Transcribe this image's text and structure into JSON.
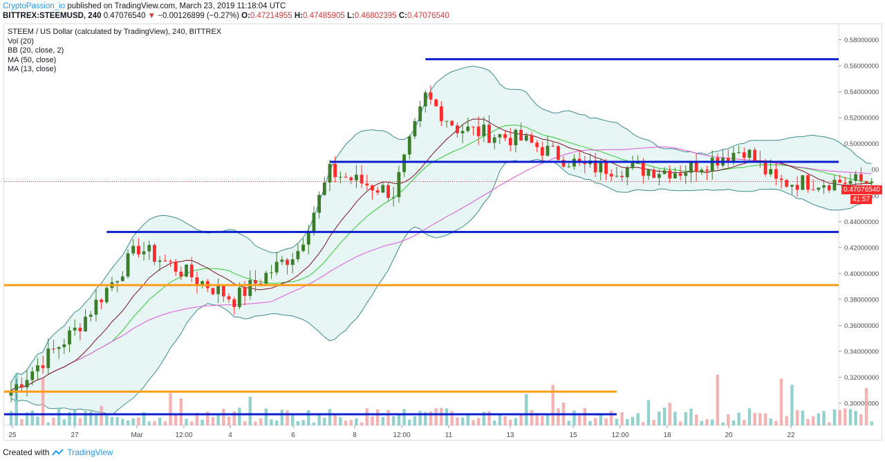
{
  "header": {
    "author": "CryptoPassion_io",
    "published": "published on TradingView.com, March 23, 2019 11:18:04 UTC",
    "symbol": "BITTREX:STEEMUSD, 240",
    "last": "0.47076540",
    "arrow": "▼",
    "change": "−0.00126899 (−0.27%)",
    "o_label": "O:",
    "o": "0.47214955",
    "h_label": "H:",
    "h": "0.47485905",
    "l_label": "L:",
    "l": "0.46802395",
    "c_label": "C:",
    "c": "0.47076540"
  },
  "legend": [
    "STEEM / US Dollar (calculated by TradingView), 240, BITTREX",
    "Vol (20)",
    "BB (20, close, 2)",
    "MA (50, close)",
    "MA (13, close)"
  ],
  "price_tag": "0.47076540",
  "countdown_tag": "41:57",
  "footer": {
    "text": "Created with",
    "brand": "TradingView"
  },
  "colors": {
    "up": "#3b7d2a",
    "down": "#ff2a2a",
    "bb": "#3b8b8b",
    "bbfill": "#e7f5f5",
    "ma50": "#e055dc",
    "ma13": "#7a0e1c",
    "ma20": "#2ecc2e",
    "blueline": "#0a1ed0",
    "orangeline": "#ff9b14",
    "volup": "#7fc9c6",
    "voldown": "#f2a4a4"
  },
  "chart_data": {
    "type": "candlestick",
    "y_axis_labels": [
      "0.58000000",
      "0.56000000",
      "0.54000000",
      "0.52000000",
      "0.50000000",
      "0.48000000",
      "0.46000000",
      "0.44000000",
      "0.42000000",
      "0.40000000",
      "0.38000000",
      "0.36000000",
      "0.34000000",
      "0.32000000",
      "0.30000000"
    ],
    "ylim": [
      0.283,
      0.592
    ],
    "x_axis_labels": [
      "25",
      "27",
      "Mar",
      "12:00",
      "4",
      "6",
      "8",
      "12:00",
      "11",
      "13",
      "15",
      "12:00",
      "18",
      "20",
      "22"
    ],
    "horizontal_lines": [
      {
        "color": "blue",
        "price": 0.565,
        "from": "Mar 10",
        "to": "end"
      },
      {
        "color": "blue",
        "price": 0.486,
        "from": "Mar 7",
        "to": "end"
      },
      {
        "color": "blue",
        "price": 0.432,
        "from": "Feb 28",
        "to": "end"
      },
      {
        "color": "orange",
        "price": 0.391,
        "from": "start",
        "to": "end"
      },
      {
        "color": "orange",
        "price": 0.309,
        "from": "start",
        "to": "Mar 16"
      },
      {
        "color": "blue",
        "price": 0.2915,
        "from": "start",
        "to": "Mar 16"
      }
    ],
    "key_closes": [
      [
        "Feb 25",
        0.31
      ],
      [
        "Feb 27",
        0.356
      ],
      [
        "Mar 1",
        0.42
      ],
      [
        "Mar 4",
        0.38
      ],
      [
        "Mar 6",
        0.418
      ],
      [
        "Mar 7",
        0.478
      ],
      [
        "Mar 9",
        0.462
      ],
      [
        "Mar 10",
        0.536
      ],
      [
        "Mar 11",
        0.512
      ],
      [
        "Mar 13",
        0.503
      ],
      [
        "Mar 15",
        0.482
      ],
      [
        "Mar 18",
        0.479
      ],
      [
        "Mar 20",
        0.496
      ],
      [
        "Mar 21",
        0.47
      ],
      [
        "Mar 23",
        0.4708
      ]
    ]
  }
}
